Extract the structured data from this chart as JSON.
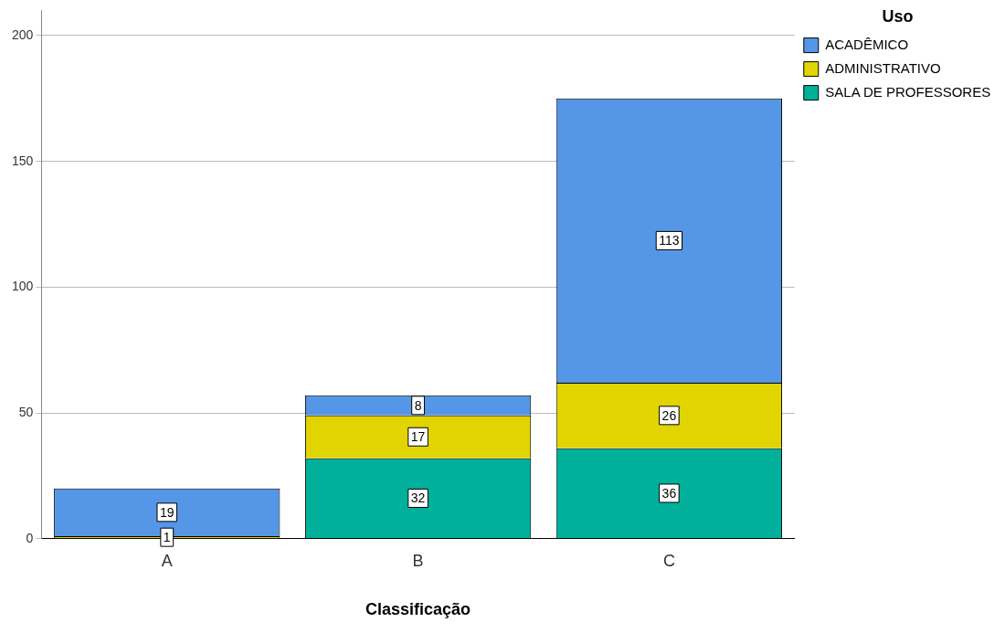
{
  "chart_data": {
    "type": "bar",
    "stacked": true,
    "xlabel": "Classificação",
    "legend_title": "Uso",
    "legend": "top right",
    "grid": "y",
    "data_labels": true,
    "categories": [
      "A",
      "B",
      "C"
    ],
    "series": [
      {
        "name": "SALA DE PROFESSORES",
        "color": "#00b09b",
        "values": [
          null,
          32,
          36
        ]
      },
      {
        "name": "ADMINISTRATIVO",
        "color": "#e1d400",
        "values": [
          1,
          17,
          26
        ]
      },
      {
        "name": "ACADÊMICO",
        "color": "#5596e6",
        "values": [
          19,
          8,
          113
        ]
      }
    ],
    "ylim": [
      0,
      210
    ],
    "yticks": [
      0,
      50,
      100,
      150,
      200
    ]
  }
}
